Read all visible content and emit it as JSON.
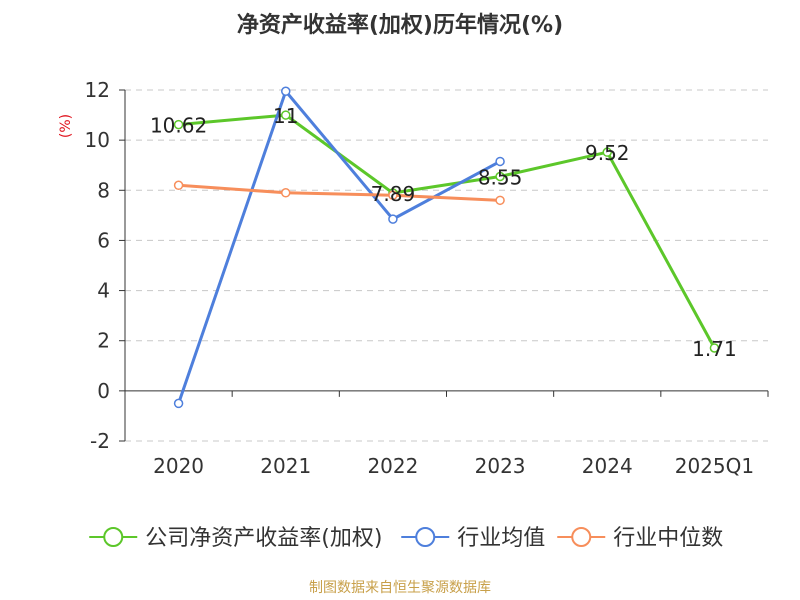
{
  "chart_data": {
    "type": "line",
    "title": "净资产收益率(加权)历年情况(%)",
    "ylabel": "(%)",
    "xlabel": "",
    "categories": [
      "2020",
      "2021",
      "2022",
      "2023",
      "2024",
      "2025Q1"
    ],
    "ylim": [
      -2,
      12
    ],
    "yticks": [
      12,
      10,
      8,
      6,
      4,
      2,
      0,
      -2
    ],
    "grid": true,
    "legend_position": "bottom",
    "series": [
      {
        "name": "公司净资产收益率(加权)",
        "color": "#5cc72a",
        "values": [
          10.62,
          11,
          7.89,
          8.55,
          9.52,
          1.71
        ],
        "labels": [
          "10.62",
          "11",
          "7.89",
          "8.55",
          "9.52",
          "1.71"
        ]
      },
      {
        "name": "行业均值",
        "color": "#4e7fdc",
        "values": [
          -0.5,
          11.95,
          6.85,
          9.15,
          null,
          null
        ]
      },
      {
        "name": "行业中位数",
        "color": "#f78e5b",
        "values": [
          8.2,
          7.9,
          7.8,
          7.6,
          null,
          null
        ]
      }
    ]
  },
  "footer": "制图数据来自恒生聚源数据库"
}
